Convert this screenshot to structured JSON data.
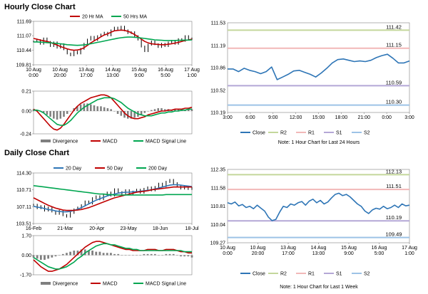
{
  "sections": {
    "hourly_title": "Hourly Close Chart",
    "daily_title": "Daily Close Chart"
  },
  "colors": {
    "close": "#2e75b6",
    "ma_short": "#c00000",
    "ma_long": "#00a650",
    "divergence": "#7f7f7f",
    "r2": "#c4d79b",
    "r1": "#f2b8b8",
    "s1": "#b4a7d6",
    "s2": "#9dc3e6",
    "price": "#000000"
  },
  "chart_data": [
    {
      "id": "hourly_price",
      "type": "line",
      "legend": [
        "20 Hr MA",
        "50 Hrs MA"
      ],
      "y_ticks": [
        "111.69",
        "111.07",
        "110.44",
        "109.81"
      ],
      "ylim": [
        109.81,
        111.69
      ],
      "x_ticks": [
        [
          "10 Aug",
          "0:00"
        ],
        [
          "10 Aug",
          "20:00"
        ],
        [
          "13 Aug",
          "17:00"
        ],
        [
          "14 Aug",
          "13:00"
        ],
        [
          "15 Aug",
          "9:00"
        ],
        [
          "16 Aug",
          "5:00"
        ],
        [
          "17 Aug",
          "1:00"
        ]
      ],
      "price": [
        110.82,
        110.88,
        110.72,
        110.95,
        110.8,
        110.62,
        110.78,
        110.55,
        110.7,
        110.48,
        110.3,
        110.22,
        110.38,
        110.3,
        110.5,
        110.72,
        110.9,
        111.02,
        110.88,
        111.05,
        111.12,
        111.2,
        111.08,
        111.3,
        111.42,
        111.35,
        111.46,
        111.3,
        111.18,
        111.22,
        111.05,
        110.9,
        110.6,
        110.4,
        110.68,
        110.82,
        110.7,
        110.58,
        110.72,
        110.62,
        110.78,
        110.85,
        110.72,
        110.92,
        110.85,
        111.05,
        110.92,
        110.95
      ],
      "ma20": [
        110.95,
        110.92,
        110.88,
        110.85,
        110.82,
        110.78,
        110.72,
        110.66,
        110.6,
        110.55,
        110.5,
        110.46,
        110.44,
        110.45,
        110.48,
        110.55,
        110.65,
        110.76,
        110.85,
        110.93,
        111.02,
        111.1,
        111.15,
        111.22,
        111.28,
        111.3,
        111.31,
        111.3,
        111.26,
        111.2,
        111.12,
        111.02,
        110.92,
        110.82,
        110.76,
        110.72,
        110.7,
        110.69,
        110.68,
        110.68,
        110.7,
        110.72,
        110.75,
        110.78,
        110.82,
        110.86,
        110.89,
        110.92
      ],
      "ma50": [
        110.8,
        110.8,
        110.79,
        110.78,
        110.77,
        110.76,
        110.75,
        110.73,
        110.72,
        110.7,
        110.68,
        110.67,
        110.66,
        110.65,
        110.66,
        110.67,
        110.69,
        110.72,
        110.75,
        110.78,
        110.81,
        110.84,
        110.87,
        110.9,
        110.93,
        110.96,
        110.98,
        111.0,
        111.01,
        111.01,
        111.0,
        110.99,
        110.97,
        110.95,
        110.93,
        110.91,
        110.89,
        110.88,
        110.87,
        110.86,
        110.86,
        110.86,
        110.86,
        110.87,
        110.87,
        110.88,
        110.88,
        110.89
      ]
    },
    {
      "id": "hourly_macd",
      "type": "bar+line",
      "y_ticks": [
        "0.21",
        "0.00",
        "-0.24"
      ],
      "ylim": [
        -0.24,
        0.21
      ],
      "legend": [
        "Divergence",
        "MACD",
        "MACD Signal Line"
      ],
      "divergence": [
        0.02,
        0.01,
        0.0,
        -0.02,
        -0.04,
        -0.06,
        -0.08,
        -0.09,
        -0.08,
        -0.06,
        -0.03,
        0.0,
        0.03,
        0.05,
        0.07,
        0.08,
        0.08,
        0.07,
        0.06,
        0.05,
        0.05,
        0.04,
        0.03,
        0.02,
        0.0,
        -0.03,
        -0.05,
        -0.07,
        -0.08,
        -0.08,
        -0.07,
        -0.06,
        -0.04,
        -0.02,
        0.0,
        0.01,
        0.02,
        0.03,
        0.03,
        0.02,
        0.02,
        0.01,
        0.02,
        0.02,
        0.01,
        0.01,
        0.02,
        0.02
      ],
      "macd": [
        0.02,
        0.0,
        -0.04,
        -0.08,
        -0.12,
        -0.16,
        -0.19,
        -0.2,
        -0.18,
        -0.14,
        -0.09,
        -0.04,
        0.01,
        0.05,
        0.08,
        0.1,
        0.12,
        0.14,
        0.15,
        0.16,
        0.17,
        0.17,
        0.16,
        0.14,
        0.1,
        0.06,
        0.02,
        -0.02,
        -0.05,
        -0.07,
        -0.08,
        -0.08,
        -0.07,
        -0.06,
        -0.04,
        -0.03,
        -0.02,
        -0.01,
        0.0,
        0.0,
        0.01,
        0.01,
        0.02,
        0.02,
        0.02,
        0.03,
        0.03,
        0.04
      ],
      "signal": [
        0.01,
        0.01,
        0.0,
        -0.02,
        -0.05,
        -0.08,
        -0.11,
        -0.14,
        -0.15,
        -0.15,
        -0.13,
        -0.1,
        -0.06,
        -0.02,
        0.01,
        0.04,
        0.06,
        0.08,
        0.1,
        0.12,
        0.13,
        0.14,
        0.14,
        0.14,
        0.13,
        0.11,
        0.09,
        0.06,
        0.03,
        0.01,
        -0.01,
        -0.03,
        -0.04,
        -0.05,
        -0.05,
        -0.05,
        -0.04,
        -0.03,
        -0.02,
        -0.02,
        -0.01,
        -0.01,
        0.0,
        0.0,
        0.01,
        0.01,
        0.02,
        0.02
      ]
    },
    {
      "id": "hourly_close",
      "type": "line",
      "y_ticks": [
        "111.53",
        "111.19",
        "110.86",
        "110.52",
        "110.19"
      ],
      "ylim": [
        110.19,
        111.53
      ],
      "x_ticks": [
        "3:00",
        "6:00",
        "9:00",
        "12:00",
        "15:00",
        "18:00",
        "21:00",
        "0:00",
        "3:00"
      ],
      "levels": [
        {
          "name": "R2",
          "value": 111.42,
          "label": "111.42"
        },
        {
          "name": "R1",
          "value": 111.15,
          "label": "111.15"
        },
        {
          "name": "S1",
          "value": 110.59,
          "label": "110.59"
        },
        {
          "name": "S2",
          "value": 110.3,
          "label": "110.30"
        }
      ],
      "close": [
        110.84,
        110.84,
        110.8,
        110.85,
        110.82,
        110.8,
        110.77,
        110.8,
        110.87,
        110.68,
        110.72,
        110.76,
        110.81,
        110.82,
        110.79,
        110.76,
        110.72,
        110.78,
        110.85,
        110.93,
        110.98,
        110.99,
        110.97,
        110.95,
        110.96,
        110.95,
        110.97,
        111.01,
        111.04,
        111.06,
        111.0,
        110.93,
        110.93,
        110.96
      ],
      "legend": [
        "Close",
        "R2",
        "R1",
        "S1",
        "S2"
      ],
      "note": "Note: 1 Hour Chart for Last 24 Hours"
    },
    {
      "id": "daily_price",
      "type": "line",
      "legend": [
        "20 Day",
        "50 Day",
        "200 Day"
      ],
      "y_ticks": [
        "114.30",
        "110.71",
        "107.11",
        "103.51"
      ],
      "ylim": [
        103.51,
        114.3
      ],
      "x_ticks": [
        "16-Feb",
        "21-Mar",
        "20-Apr",
        "23-May",
        "18-Jun",
        "18-Jul"
      ],
      "price": [
        107.5,
        106.8,
        107.2,
        106.3,
        106.9,
        106.1,
        105.6,
        106.2,
        105.3,
        105.0,
        105.8,
        106.5,
        106.9,
        107.4,
        108.2,
        107.8,
        108.9,
        109.3,
        108.7,
        109.6,
        110.1,
        109.5,
        110.8,
        110.2,
        109.9,
        110.6,
        109.8,
        110.3,
        110.7,
        110.1,
        110.9,
        111.2,
        110.6,
        111.3,
        112.0,
        111.5,
        112.4,
        112.8,
        112.1,
        111.4,
        111.0,
        111.3,
        110.9,
        111.1
      ],
      "ma20": [
        107.2,
        107.0,
        106.9,
        106.7,
        106.5,
        106.4,
        106.2,
        106.1,
        106.0,
        106.0,
        106.1,
        106.3,
        106.6,
        106.9,
        107.3,
        107.7,
        108.1,
        108.5,
        108.8,
        109.1,
        109.4,
        109.6,
        109.8,
        110.0,
        110.1,
        110.2,
        110.2,
        110.3,
        110.3,
        110.4,
        110.5,
        110.6,
        110.7,
        110.9,
        111.1,
        111.3,
        111.5,
        111.7,
        111.8,
        111.8,
        111.7,
        111.6,
        111.5,
        111.4
      ],
      "ma50": [
        109.0,
        108.6,
        108.2,
        107.8,
        107.4,
        107.1,
        106.8,
        106.6,
        106.4,
        106.3,
        106.3,
        106.3,
        106.4,
        106.5,
        106.7,
        106.9,
        107.2,
        107.5,
        107.8,
        108.1,
        108.4,
        108.7,
        109.0,
        109.2,
        109.4,
        109.6,
        109.8,
        110.0,
        110.2,
        110.3,
        110.4,
        110.5,
        110.7,
        110.8,
        110.9,
        111.0,
        111.1,
        111.2,
        111.3,
        111.3,
        111.3,
        111.3,
        111.3,
        111.3
      ],
      "ma200": [
        111.6,
        111.5,
        111.4,
        111.3,
        111.2,
        111.1,
        111.0,
        110.9,
        110.8,
        110.7,
        110.6,
        110.5,
        110.4,
        110.3,
        110.2,
        110.1,
        110.0,
        109.9,
        109.8,
        109.8,
        109.7,
        109.7,
        109.6,
        109.6,
        109.6,
        109.6,
        109.6,
        109.6,
        109.6,
        109.6,
        109.6,
        109.6,
        109.6,
        109.6,
        109.6,
        109.6,
        109.7,
        109.7,
        109.7,
        109.7,
        109.7,
        109.7,
        109.7,
        109.7
      ]
    },
    {
      "id": "daily_macd",
      "type": "bar+line",
      "y_ticks": [
        "1.70",
        "0.00",
        "-1.70"
      ],
      "ylim": [
        -1.7,
        1.7
      ],
      "legend": [
        "Divergence",
        "MACD",
        "MACD Signal Line"
      ],
      "divergence": [
        -0.2,
        -0.3,
        -0.4,
        -0.4,
        -0.3,
        -0.2,
        -0.1,
        0.0,
        0.1,
        0.2,
        0.3,
        0.4,
        0.4,
        0.5,
        0.5,
        0.4,
        0.4,
        0.3,
        0.3,
        0.2,
        0.2,
        0.2,
        0.1,
        0.1,
        0.0,
        0.0,
        0.0,
        0.0,
        0.0,
        0.0,
        0.1,
        0.1,
        0.1,
        0.1,
        0.0,
        0.0,
        0.1,
        0.1,
        0.1,
        0.0,
        -0.1,
        -0.1,
        -0.1,
        -0.2
      ],
      "macd": [
        -0.4,
        -0.7,
        -1.0,
        -1.2,
        -1.4,
        -1.4,
        -1.3,
        -1.2,
        -1.0,
        -0.8,
        -0.5,
        -0.2,
        0.1,
        0.4,
        0.7,
        0.9,
        1.1,
        1.2,
        1.2,
        1.1,
        1.0,
        0.9,
        0.8,
        0.7,
        0.6,
        0.5,
        0.5,
        0.4,
        0.4,
        0.4,
        0.4,
        0.5,
        0.5,
        0.5,
        0.4,
        0.4,
        0.5,
        0.5,
        0.5,
        0.4,
        0.3,
        0.3,
        0.2,
        0.2
      ],
      "signal": [
        -0.2,
        -0.4,
        -0.6,
        -0.8,
        -1.0,
        -1.1,
        -1.2,
        -1.2,
        -1.1,
        -1.0,
        -0.8,
        -0.6,
        -0.3,
        -0.1,
        0.2,
        0.4,
        0.6,
        0.8,
        0.9,
        1.0,
        1.0,
        0.9,
        0.9,
        0.8,
        0.7,
        0.6,
        0.6,
        0.5,
        0.5,
        0.4,
        0.4,
        0.4,
        0.4,
        0.4,
        0.4,
        0.4,
        0.4,
        0.4,
        0.4,
        0.4,
        0.4,
        0.3,
        0.3,
        0.3
      ]
    },
    {
      "id": "daily_close",
      "type": "line",
      "y_ticks": [
        "112.35",
        "111.58",
        "110.81",
        "110.04",
        "109.27"
      ],
      "ylim": [
        109.27,
        112.35
      ],
      "x_ticks": [
        [
          "10 Aug",
          "0:00"
        ],
        [
          "10 Aug",
          "20:00"
        ],
        [
          "13 Aug",
          "17:00"
        ],
        [
          "14 Aug",
          "13:00"
        ],
        [
          "15 Aug",
          "9:00"
        ],
        [
          "16 Aug",
          "5:00"
        ],
        [
          "17 Aug",
          "1:00"
        ]
      ],
      "levels": [
        {
          "name": "R2",
          "value": 112.13,
          "label": "112.13"
        },
        {
          "name": "R1",
          "value": 111.51,
          "label": "111.51"
        },
        {
          "name": "S1",
          "value": 110.19,
          "label": "110.19"
        },
        {
          "name": "S2",
          "value": 109.49,
          "label": "109.49"
        }
      ],
      "close": [
        110.95,
        110.9,
        110.98,
        110.82,
        110.88,
        110.75,
        110.8,
        110.7,
        110.85,
        110.72,
        110.6,
        110.35,
        110.2,
        110.25,
        110.55,
        110.8,
        110.75,
        110.9,
        110.85,
        110.95,
        111.0,
        110.85,
        111.02,
        111.1,
        110.95,
        111.05,
        110.9,
        110.98,
        111.15,
        111.3,
        111.35,
        111.25,
        111.3,
        111.2,
        111.05,
        110.9,
        110.8,
        110.6,
        110.5,
        110.65,
        110.72,
        110.68,
        110.8,
        110.7,
        110.75,
        110.85,
        110.75,
        110.9,
        110.82,
        110.85
      ],
      "legend": [
        "Close",
        "R2",
        "R1",
        "S1",
        "S2"
      ],
      "note": "Note: 1 Hour Chart for Last 1 Week"
    }
  ]
}
